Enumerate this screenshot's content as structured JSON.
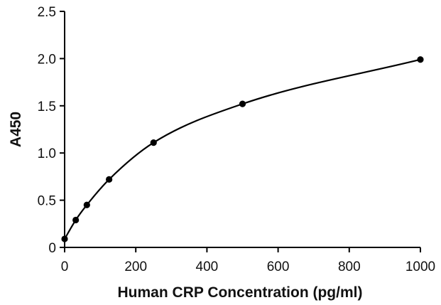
{
  "chart_data": {
    "type": "scatter",
    "title": "",
    "xlabel": "Human CRP Concentration (pg/ml)",
    "ylabel": "A450",
    "xlim": [
      0,
      1000
    ],
    "ylim": [
      0,
      2.5
    ],
    "x_ticks": [
      0,
      200,
      400,
      600,
      800,
      1000
    ],
    "x_tick_labels": [
      "0",
      "200",
      "400",
      "600",
      "800",
      "1000"
    ],
    "y_ticks": [
      0,
      0.5,
      1.0,
      1.5,
      2.0,
      2.5
    ],
    "y_tick_labels": [
      "0",
      "0.5",
      "1.0",
      "1.5",
      "2.0",
      "2.5"
    ],
    "grid": false,
    "fitted_curve": true,
    "series": [
      {
        "x": [
          0,
          31.25,
          62.5,
          125,
          250,
          500,
          1000
        ],
        "y": [
          0.09,
          0.29,
          0.45,
          0.72,
          1.11,
          1.52,
          1.99
        ]
      }
    ],
    "colors": {
      "marker": "#000000",
      "curve": "#000000",
      "axis": "#000000"
    }
  }
}
